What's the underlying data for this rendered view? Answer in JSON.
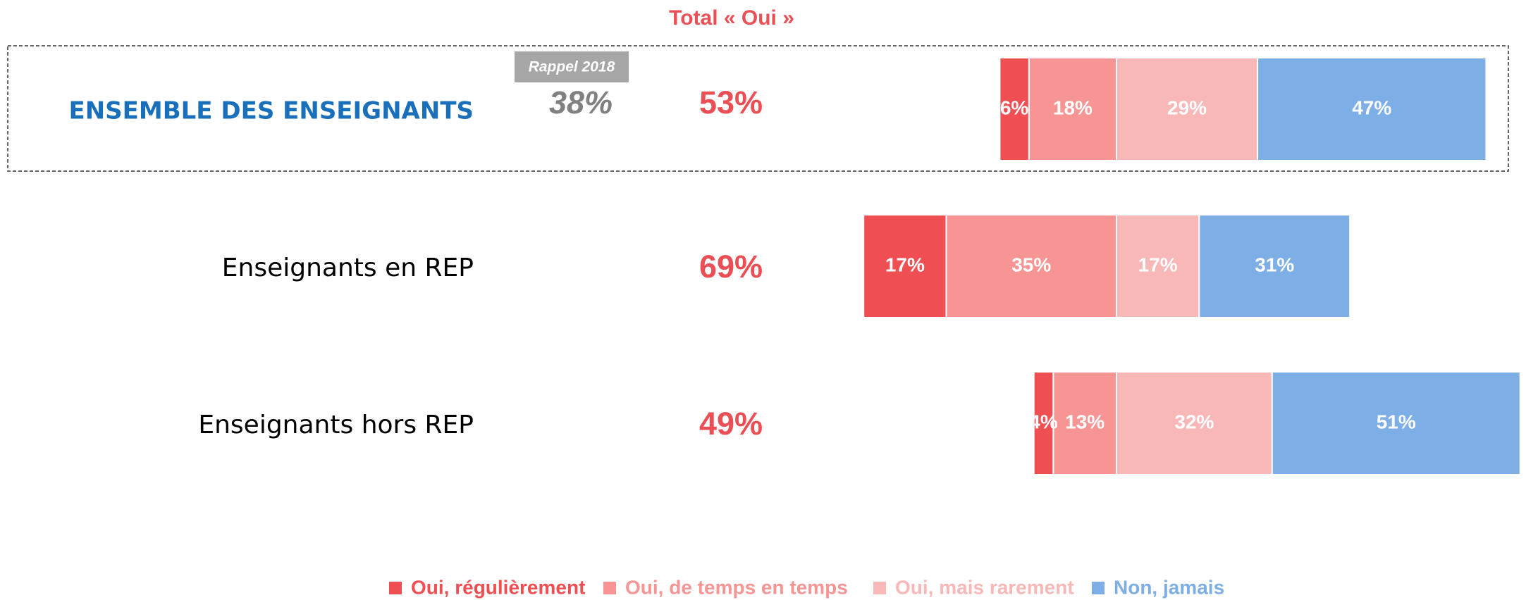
{
  "chart_data": {
    "type": "bar",
    "stacked": true,
    "diverging": true,
    "orientation": "horizontal",
    "totals_title": "Total « Oui »",
    "categories": [
      "ENSEMBLE DES ENSEIGNANTS",
      "Enseignants en REP",
      "Enseignants hors REP"
    ],
    "highlight_color": "#1a6fba",
    "series": [
      {
        "name": "Oui, régulièrement",
        "color": "#ef4f53",
        "values": [
          6,
          17,
          4
        ],
        "value_labels": [
          "6%",
          "17%",
          "4%"
        ]
      },
      {
        "name": "Oui, de temps en temps",
        "color": "#f79595",
        "values": [
          18,
          35,
          13
        ],
        "value_labels": [
          "18%",
          "35%",
          "13%"
        ]
      },
      {
        "name": "Oui, mais rarement",
        "color": "#f8b8b8",
        "values": [
          29,
          17,
          32
        ],
        "value_labels": [
          "29%",
          "17%",
          "32%"
        ]
      },
      {
        "name": "Non, jamais",
        "color": "#7eaee6",
        "values": [
          47,
          31,
          51
        ],
        "value_labels": [
          "47%",
          "31%",
          "51%"
        ]
      }
    ],
    "totals": {
      "values": [
        53,
        69,
        49
      ],
      "value_labels": [
        "53%",
        "69%",
        "49%"
      ],
      "color": "#e94f55"
    },
    "reminder": {
      "label": "Rappel 2018",
      "value": 38,
      "value_label": "38%"
    }
  }
}
